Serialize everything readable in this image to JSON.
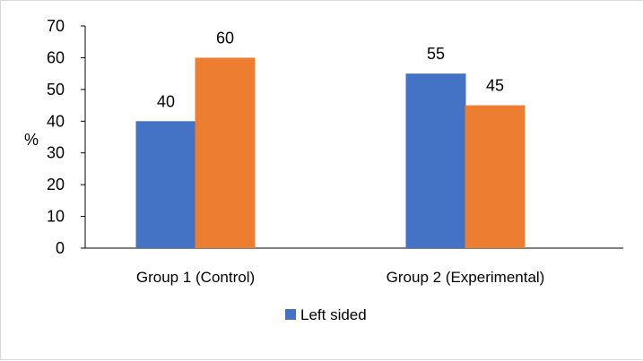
{
  "chart_data": {
    "type": "bar",
    "categories": [
      "Group 1 (Control)",
      "Group 2 (Experimental)"
    ],
    "series": [
      {
        "name": "Left sided",
        "color": "#4472C4",
        "values": [
          40,
          55
        ]
      },
      {
        "color": "#ED7D31",
        "values": [
          60,
          45
        ]
      }
    ],
    "ylabel": "%",
    "ylim": [
      0,
      70
    ],
    "yticks": [
      "0",
      "10",
      "20",
      "30",
      "40",
      "50",
      "60",
      "70"
    ],
    "grid": false,
    "legend": {
      "position": "bottom",
      "entries": [
        "Left sided"
      ]
    }
  }
}
